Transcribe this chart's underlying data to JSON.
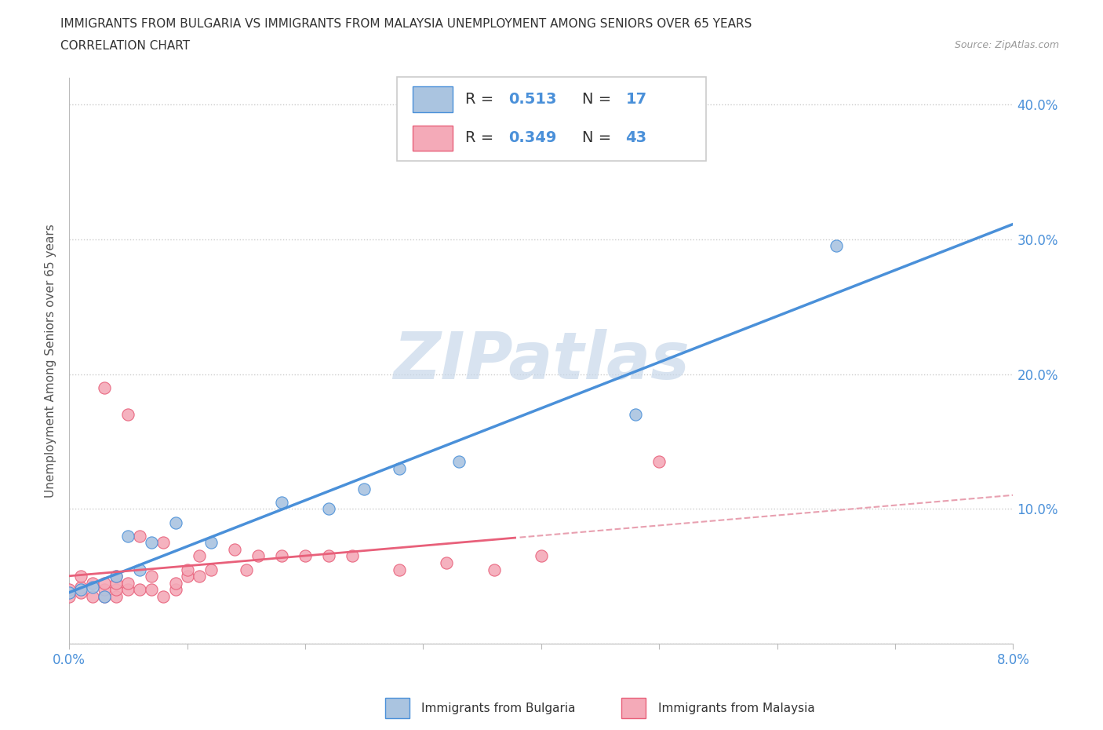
{
  "title_line1": "IMMIGRANTS FROM BULGARIA VS IMMIGRANTS FROM MALAYSIA UNEMPLOYMENT AMONG SENIORS OVER 65 YEARS",
  "title_line2": "CORRELATION CHART",
  "source": "Source: ZipAtlas.com",
  "ylabel": "Unemployment Among Seniors over 65 years",
  "legend_bulgaria": "Immigrants from Bulgaria",
  "legend_malaysia": "Immigrants from Malaysia",
  "R_bulgaria": "0.513",
  "N_bulgaria": "17",
  "R_malaysia": "0.349",
  "N_malaysia": "43",
  "color_bulgaria": "#aac4e0",
  "color_malaysia": "#f4aab8",
  "trendline_bulgaria": "#4a90d9",
  "trendline_malaysia": "#e8607a",
  "trendline_malaysia_dashed": "#e8a0b0",
  "watermark_color": "#c8d8ea",
  "xmin": 0.0,
  "xmax": 0.08,
  "ymin": 0.0,
  "ymax": 0.42,
  "bulgaria_x": [
    0.0,
    0.001,
    0.002,
    0.003,
    0.004,
    0.005,
    0.006,
    0.007,
    0.009,
    0.012,
    0.018,
    0.022,
    0.025,
    0.028,
    0.033,
    0.048,
    0.065
  ],
  "bulgaria_y": [
    0.038,
    0.04,
    0.042,
    0.035,
    0.05,
    0.08,
    0.055,
    0.075,
    0.09,
    0.075,
    0.105,
    0.1,
    0.115,
    0.13,
    0.135,
    0.17,
    0.295
  ],
  "malaysia_x": [
    0.0,
    0.0,
    0.001,
    0.001,
    0.001,
    0.002,
    0.002,
    0.003,
    0.003,
    0.003,
    0.003,
    0.004,
    0.004,
    0.004,
    0.004,
    0.005,
    0.005,
    0.005,
    0.006,
    0.006,
    0.007,
    0.007,
    0.008,
    0.008,
    0.009,
    0.009,
    0.01,
    0.01,
    0.011,
    0.011,
    0.012,
    0.014,
    0.015,
    0.016,
    0.018,
    0.02,
    0.022,
    0.024,
    0.028,
    0.032,
    0.036,
    0.04,
    0.05
  ],
  "malaysia_y": [
    0.035,
    0.04,
    0.038,
    0.042,
    0.05,
    0.035,
    0.045,
    0.035,
    0.04,
    0.045,
    0.19,
    0.035,
    0.04,
    0.045,
    0.05,
    0.04,
    0.045,
    0.17,
    0.04,
    0.08,
    0.04,
    0.05,
    0.035,
    0.075,
    0.04,
    0.045,
    0.05,
    0.055,
    0.05,
    0.065,
    0.055,
    0.07,
    0.055,
    0.065,
    0.065,
    0.065,
    0.065,
    0.065,
    0.055,
    0.06,
    0.055,
    0.065,
    0.135
  ]
}
